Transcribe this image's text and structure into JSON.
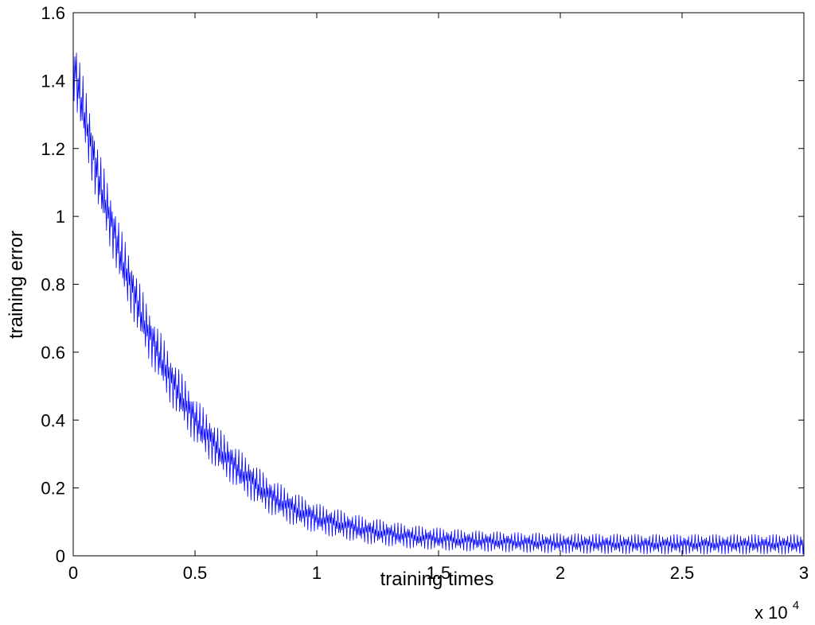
{
  "chart_data": {
    "type": "line",
    "title": "",
    "xlabel": "training times",
    "ylabel": "training error",
    "x_multiplier_label": "x 10",
    "x_multiplier_exponent": "4",
    "xlim": [
      0,
      3
    ],
    "ylim": [
      0,
      1.6
    ],
    "x_ticks": [
      0,
      0.5,
      1,
      1.5,
      2,
      2.5,
      3
    ],
    "x_tick_labels": [
      "0",
      "0.5",
      "1",
      "1.5",
      "2",
      "2.5",
      "3"
    ],
    "y_ticks": [
      0,
      0.2,
      0.4,
      0.6,
      0.8,
      1,
      1.2,
      1.4,
      1.6
    ],
    "y_tick_labels": [
      "0",
      "0.2",
      "0.4",
      "0.6",
      "0.8",
      "1",
      "1.2",
      "1.4",
      "1.6"
    ],
    "grid": false,
    "box": true,
    "series": [
      {
        "color": "#0000ff",
        "x": [
          0,
          0.1,
          0.2,
          0.3,
          0.4,
          0.5,
          0.6,
          0.7,
          0.8,
          0.9,
          1.0,
          1.2,
          1.4,
          1.6,
          1.8,
          2.0,
          2.2,
          2.4,
          2.6,
          2.8,
          3.0
        ],
        "y_center": [
          1.45,
          1.12,
          0.87,
          0.67,
          0.52,
          0.4,
          0.31,
          0.24,
          0.18,
          0.14,
          0.11,
          0.075,
          0.055,
          0.045,
          0.04,
          0.037,
          0.035,
          0.034,
          0.034,
          0.034,
          0.034
        ],
        "y_band_halfwidth": [
          0.1,
          0.09,
          0.085,
          0.08,
          0.075,
          0.07,
          0.065,
          0.06,
          0.055,
          0.05,
          0.045,
          0.04,
          0.035,
          0.032,
          0.03,
          0.03,
          0.03,
          0.03,
          0.03,
          0.03,
          0.03
        ]
      }
    ]
  }
}
